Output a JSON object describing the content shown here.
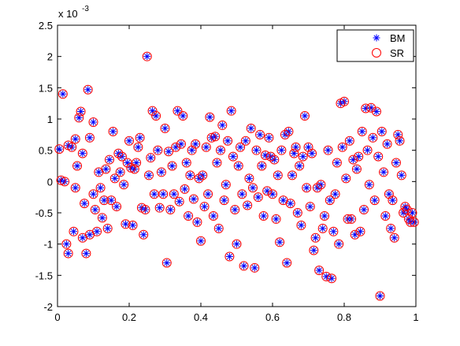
{
  "chart_data": {
    "type": "scatter",
    "y_multiplier": {
      "base": "x 10",
      "exponent": "-3"
    },
    "xlim": [
      0,
      1
    ],
    "ylim": [
      -2,
      2.5
    ],
    "xticks": [
      0,
      0.2,
      0.4,
      0.6,
      0.8,
      1
    ],
    "yticks": [
      -2,
      -1.5,
      -1,
      -0.5,
      0,
      0.5,
      1,
      1.5,
      2,
      2.5
    ],
    "legend": "top-right",
    "x": [
      0.005,
      0.01,
      0.015,
      0.02,
      0.025,
      0.03,
      0.03,
      0.04,
      0.045,
      0.05,
      0.05,
      0.055,
      0.06,
      0.065,
      0.07,
      0.07,
      0.075,
      0.08,
      0.085,
      0.09,
      0.09,
      0.1,
      0.1,
      0.105,
      0.11,
      0.115,
      0.12,
      0.125,
      0.13,
      0.135,
      0.14,
      0.145,
      0.15,
      0.155,
      0.16,
      0.165,
      0.17,
      0.175,
      0.18,
      0.185,
      0.19,
      0.195,
      0.2,
      0.205,
      0.21,
      0.215,
      0.22,
      0.225,
      0.23,
      0.235,
      0.24,
      0.245,
      0.25,
      0.255,
      0.26,
      0.265,
      0.27,
      0.275,
      0.28,
      0.285,
      0.29,
      0.295,
      0.3,
      0.305,
      0.31,
      0.315,
      0.32,
      0.325,
      0.33,
      0.335,
      0.34,
      0.345,
      0.35,
      0.355,
      0.36,
      0.365,
      0.37,
      0.375,
      0.38,
      0.385,
      0.39,
      0.395,
      0.4,
      0.405,
      0.41,
      0.415,
      0.42,
      0.425,
      0.43,
      0.435,
      0.44,
      0.445,
      0.45,
      0.455,
      0.46,
      0.465,
      0.47,
      0.475,
      0.48,
      0.485,
      0.49,
      0.495,
      0.5,
      0.505,
      0.51,
      0.515,
      0.52,
      0.525,
      0.53,
      0.535,
      0.54,
      0.545,
      0.55,
      0.555,
      0.56,
      0.565,
      0.57,
      0.575,
      0.58,
      0.585,
      0.59,
      0.595,
      0.6,
      0.605,
      0.61,
      0.615,
      0.62,
      0.625,
      0.63,
      0.635,
      0.64,
      0.645,
      0.65,
      0.655,
      0.66,
      0.665,
      0.67,
      0.675,
      0.68,
      0.685,
      0.69,
      0.695,
      0.7,
      0.705,
      0.71,
      0.715,
      0.72,
      0.725,
      0.73,
      0.735,
      0.74,
      0.745,
      0.75,
      0.755,
      0.76,
      0.765,
      0.77,
      0.775,
      0.78,
      0.785,
      0.79,
      0.795,
      0.8,
      0.805,
      0.81,
      0.815,
      0.82,
      0.825,
      0.83,
      0.835,
      0.84,
      0.845,
      0.85,
      0.855,
      0.86,
      0.865,
      0.87,
      0.875,
      0.88,
      0.885,
      0.89,
      0.895,
      0.9,
      0.905,
      0.91,
      0.915,
      0.92,
      0.925,
      0.93,
      0.935,
      0.94,
      0.945,
      0.95,
      0.955,
      0.96,
      0.965,
      0.97,
      0.975,
      0.98,
      0.985,
      0.99,
      0.995
    ],
    "series": [
      {
        "name": "BM",
        "color": "#0000ff",
        "marker": "asterisk",
        "values": [
          0.52,
          0.02,
          1.4,
          0,
          -1.0,
          0.58,
          -1.15,
          0.55,
          -0.8,
          0.68,
          -0.1,
          0.25,
          1.02,
          1.12,
          0.45,
          -0.9,
          -0.35,
          -1.15,
          1.47,
          0.7,
          -0.85,
          0.95,
          -0.2,
          -0.45,
          -0.8,
          0.15,
          -0.1,
          -0.58,
          -0.3,
          0.2,
          -0.75,
          0.35,
          -0.3,
          0.8,
          0.05,
          -0.4,
          0.45,
          0.15,
          0.4,
          -0.05,
          -0.68,
          0.3,
          0.65,
          0.22,
          -0.7,
          0.2,
          0.3,
          0.55,
          0.7,
          -0.42,
          -0.85,
          -0.45,
          2.0,
          0.1,
          0.38,
          1.13,
          -0.2,
          1.05,
          0.5,
          -0.42,
          0.15,
          -0.2,
          0.85,
          -1.3,
          0.48,
          -0.45,
          0.25,
          -0.2,
          0.55,
          1.13,
          -0.32,
          0.6,
          1.05,
          -0.12,
          0.3,
          -0.55,
          0.1,
          0.5,
          -0.28,
          0.6,
          -0.65,
          0.05,
          -0.95,
          0.1,
          -0.4,
          0.55,
          -0.2,
          1.03,
          0.7,
          -0.55,
          0.72,
          0.3,
          -0.75,
          0.5,
          0.9,
          -0.3,
          -0.05,
          0.65,
          -1.2,
          1.13,
          0.4,
          -0.45,
          -1.0,
          0.25,
          0.55,
          -0.2,
          -1.35,
          0.65,
          -0.38,
          0.05,
          0.85,
          -0.1,
          -1.38,
          0.5,
          -0.25,
          0.75,
          0.25,
          -0.55,
          0.42,
          -0.15,
          0.7,
          0.4,
          -0.2,
          0.35,
          -0.6,
          0.1,
          -0.97,
          0.5,
          -0.3,
          0.75,
          -1.3,
          0.8,
          -0.35,
          0.1,
          0.45,
          0.55,
          -0.5,
          0.25,
          -0.7,
          0.4,
          1.05,
          -0.1,
          0.55,
          -0.4,
          0.45,
          -1.1,
          -0.9,
          -0.1,
          -1.42,
          -0.05,
          -0.75,
          -0.55,
          -1.52,
          0.5,
          -0.3,
          -1.55,
          -0.8,
          -0.2,
          0.3,
          -1.0,
          1.25,
          0.55,
          1.28,
          0.05,
          -0.6,
          0.65,
          -0.6,
          0.35,
          -0.85,
          0.2,
          0.4,
          -0.8,
          0.8,
          -0.45,
          1.17,
          0.5,
          -0.05,
          1.18,
          0.7,
          -0.3,
          1.12,
          0.4,
          -1.83,
          0.8,
          0.15,
          -0.55,
          0.6,
          -0.2,
          -0.75,
          -0.3,
          -0.9,
          0.3,
          0.75,
          0.65,
          0.1,
          -0.5,
          -0.4,
          -0.45,
          -0.6,
          -0.65,
          -0.5,
          -0.65
        ]
      },
      {
        "name": "SR",
        "color": "#ff0000",
        "marker": "circle",
        "values": [
          0.52,
          0.02,
          1.4,
          0,
          -1.0,
          0.58,
          -1.15,
          0.55,
          -0.8,
          0.68,
          -0.1,
          0.25,
          1.02,
          1.12,
          0.45,
          -0.9,
          -0.35,
          -1.15,
          1.47,
          0.7,
          -0.85,
          0.95,
          -0.2,
          -0.45,
          -0.8,
          0.15,
          -0.1,
          -0.58,
          -0.3,
          0.2,
          -0.75,
          0.35,
          -0.3,
          0.8,
          0.05,
          -0.4,
          0.45,
          0.15,
          0.4,
          -0.05,
          -0.68,
          0.3,
          0.65,
          0.22,
          -0.7,
          0.2,
          0.3,
          0.55,
          0.7,
          -0.42,
          -0.85,
          -0.45,
          2.0,
          0.1,
          0.38,
          1.13,
          -0.2,
          1.05,
          0.5,
          -0.42,
          0.15,
          -0.2,
          0.85,
          -1.3,
          0.48,
          -0.45,
          0.25,
          -0.2,
          0.55,
          1.13,
          -0.32,
          0.6,
          1.05,
          -0.12,
          0.3,
          -0.55,
          0.1,
          0.5,
          -0.28,
          0.6,
          -0.65,
          0.05,
          -0.95,
          0.1,
          -0.4,
          0.55,
          -0.2,
          1.03,
          0.7,
          -0.55,
          0.72,
          0.3,
          -0.75,
          0.5,
          0.9,
          -0.3,
          -0.05,
          0.65,
          -1.2,
          1.13,
          0.4,
          -0.45,
          -1.0,
          0.25,
          0.55,
          -0.2,
          -1.35,
          0.65,
          -0.38,
          0.05,
          0.85,
          -0.1,
          -1.38,
          0.5,
          -0.25,
          0.75,
          0.25,
          -0.55,
          0.42,
          -0.15,
          0.7,
          0.4,
          -0.2,
          0.35,
          -0.6,
          0.1,
          -0.97,
          0.5,
          -0.3,
          0.75,
          -1.3,
          0.8,
          -0.35,
          0.1,
          0.45,
          0.55,
          -0.5,
          0.25,
          -0.7,
          0.4,
          1.05,
          -0.1,
          0.55,
          -0.4,
          0.45,
          -1.1,
          -0.9,
          -0.1,
          -1.42,
          -0.05,
          -0.75,
          -0.55,
          -1.52,
          0.5,
          -0.3,
          -1.55,
          -0.8,
          -0.2,
          0.3,
          -1.0,
          1.25,
          0.55,
          1.28,
          0.05,
          -0.6,
          0.65,
          -0.6,
          0.35,
          -0.85,
          0.2,
          0.4,
          -0.8,
          0.8,
          -0.45,
          1.17,
          0.5,
          -0.05,
          1.18,
          0.7,
          -0.3,
          1.12,
          0.4,
          -1.83,
          0.8,
          0.15,
          -0.55,
          0.6,
          -0.2,
          -0.75,
          -0.3,
          -0.9,
          0.3,
          0.75,
          0.65,
          0.1,
          -0.5,
          -0.4,
          -0.45,
          -0.6,
          -0.65,
          -0.5,
          -0.65
        ]
      }
    ]
  }
}
